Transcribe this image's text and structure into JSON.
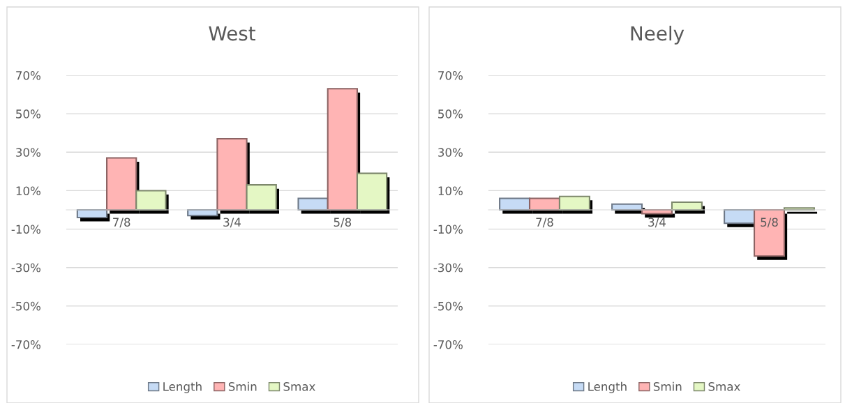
{
  "chart_data": [
    {
      "type": "bar",
      "title": "West",
      "categories": [
        "7/8",
        "3/4",
        "5/8"
      ],
      "series": [
        {
          "name": "Length",
          "color": "#c6dbf5",
          "values": [
            -4,
            -3,
            6
          ]
        },
        {
          "name": "Smin",
          "color": "#ffb4b4",
          "values": [
            27,
            37,
            63
          ]
        },
        {
          "name": "Smax",
          "color": "#e4f7c4",
          "values": [
            10,
            13,
            19
          ]
        }
      ],
      "ylim": [
        -70,
        70
      ],
      "yticks": [
        {
          "value": -70,
          "label": "-70%"
        },
        {
          "value": -50,
          "label": "-50%"
        },
        {
          "value": -30,
          "label": "-30%"
        },
        {
          "value": -10,
          "label": "-10%"
        },
        {
          "value": 10,
          "label": "10%"
        },
        {
          "value": 30,
          "label": "30%"
        },
        {
          "value": 50,
          "label": "50%"
        },
        {
          "value": 70,
          "label": "70%"
        }
      ],
      "grid": "y",
      "legend": "bottom"
    },
    {
      "type": "bar",
      "title": "Neely",
      "categories": [
        "7/8",
        "3/4",
        "5/8"
      ],
      "series": [
        {
          "name": "Length",
          "color": "#c6dbf5",
          "values": [
            6,
            3,
            -7
          ]
        },
        {
          "name": "Smin",
          "color": "#ffb4b4",
          "values": [
            6,
            -2,
            -24
          ]
        },
        {
          "name": "Smax",
          "color": "#e4f7c4",
          "values": [
            7,
            4,
            1
          ]
        }
      ],
      "ylim": [
        -70,
        70
      ],
      "yticks": [
        {
          "value": -70,
          "label": "-70%"
        },
        {
          "value": -50,
          "label": "-50%"
        },
        {
          "value": -30,
          "label": "-30%"
        },
        {
          "value": -10,
          "label": "-10%"
        },
        {
          "value": 10,
          "label": "10%"
        },
        {
          "value": 30,
          "label": "30%"
        },
        {
          "value": 50,
          "label": "50%"
        },
        {
          "value": 70,
          "label": "70%"
        }
      ],
      "grid": "y",
      "legend": "bottom"
    }
  ]
}
